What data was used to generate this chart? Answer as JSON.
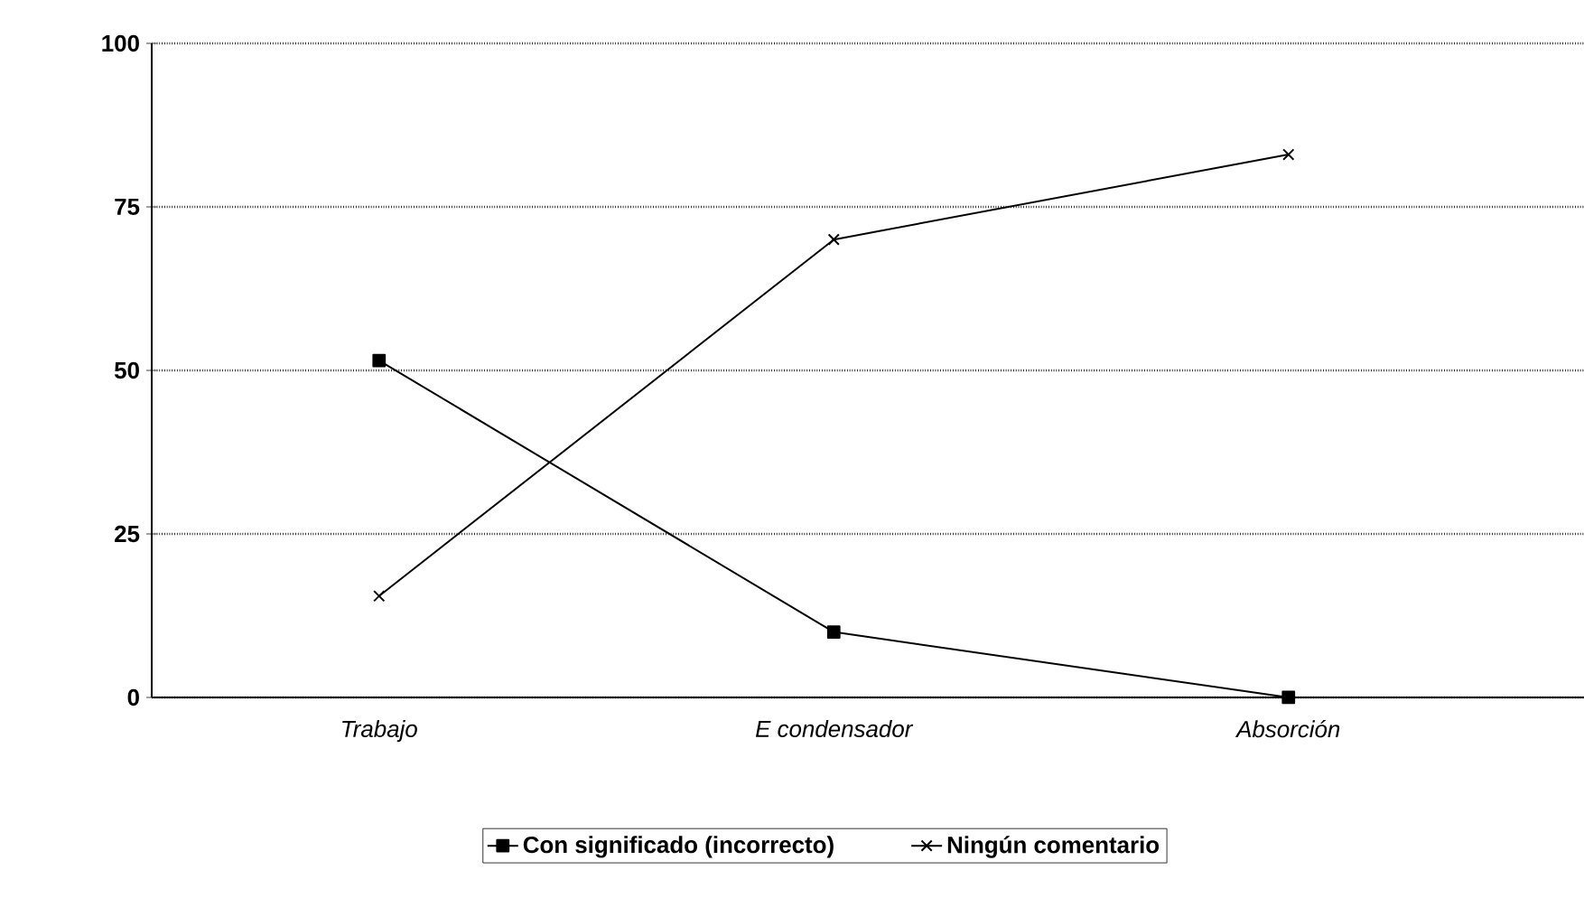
{
  "chart_data": {
    "type": "line",
    "categories": [
      "Trabajo",
      "E condensador",
      "Absorción"
    ],
    "series": [
      {
        "name": "Con significado (incorrecto)",
        "color": "#000000",
        "marker": "square",
        "values": [
          51.5,
          10,
          0
        ]
      },
      {
        "name": "Ningún comentario",
        "color": "#000000",
        "marker": "cross",
        "values": [
          15.5,
          70,
          83
        ]
      }
    ],
    "ylim": [
      0,
      100
    ],
    "yticks": [
      0,
      25,
      50,
      75,
      100
    ],
    "grid": "y",
    "legend": "bottom"
  }
}
